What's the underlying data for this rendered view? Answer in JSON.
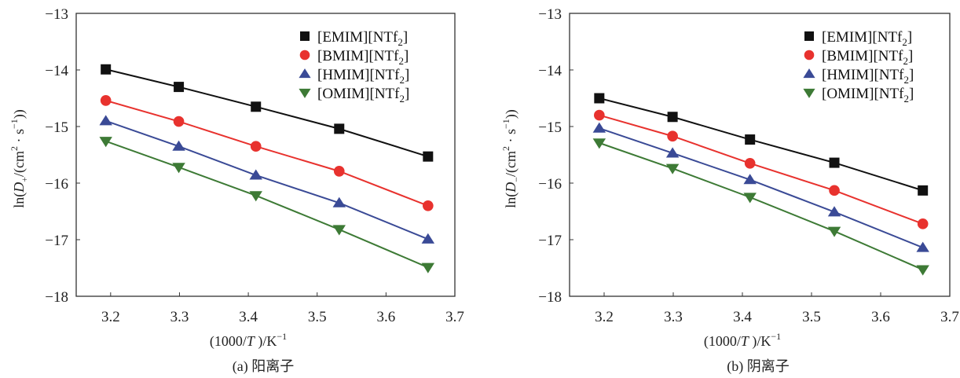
{
  "chart_data": [
    {
      "id": "a",
      "type": "line",
      "caption": "(a) 阳离子",
      "xlabel": "(1000/T )/K⁻¹",
      "ylabel": "ln(D₊/(cm²·s⁻¹))",
      "xlim": [
        3.15,
        3.7
      ],
      "ylim": [
        -18,
        -13
      ],
      "xticks": [
        3.2,
        3.3,
        3.4,
        3.5,
        3.6,
        3.7
      ],
      "xtick_labels": [
        "3.2",
        "3.3",
        "3.4",
        "3.5",
        "3.6",
        "3.7"
      ],
      "yticks": [
        -13,
        -14,
        -15,
        -16,
        -17,
        -18
      ],
      "ytick_labels": [
        "−13",
        "−14",
        "−15",
        "−16",
        "−17",
        "−18"
      ],
      "grid": false,
      "legend_position": "top-right",
      "x": [
        3.193,
        3.299,
        3.411,
        3.532,
        3.661
      ],
      "series": [
        {
          "name": "[EMIM][NTf2]",
          "base": "[EMIM][NTf",
          "sub": "2",
          "close": "]",
          "marker": "square",
          "color": "#111111",
          "values": [
            -13.99,
            -14.3,
            -14.65,
            -15.04,
            -15.53
          ]
        },
        {
          "name": "[BMIM][NTf2]",
          "base": "[BMIM][NTf",
          "sub": "2",
          "close": "]",
          "marker": "circle",
          "color": "#e8322e",
          "values": [
            -14.54,
            -14.91,
            -15.35,
            -15.79,
            -16.4
          ]
        },
        {
          "name": "[HMIM][NTf2]",
          "base": "[HMIM][NTf",
          "sub": "2",
          "close": "]",
          "marker": "triangle-up",
          "color": "#3a4a96",
          "values": [
            -14.9,
            -15.35,
            -15.86,
            -16.35,
            -16.99
          ]
        },
        {
          "name": "[OMIM][NTf2]",
          "base": "[OMIM][NTf",
          "sub": "2",
          "close": "]",
          "marker": "triangle-down",
          "color": "#3d7a35",
          "values": [
            -15.26,
            -15.72,
            -16.22,
            -16.82,
            -17.49
          ]
        }
      ]
    },
    {
      "id": "b",
      "type": "line",
      "caption": "(b) 阴离子",
      "xlabel": "(1000/T )/K⁻¹",
      "ylabel": "ln(D₋/(cm²·s⁻¹))",
      "xlim": [
        3.15,
        3.7
      ],
      "ylim": [
        -18,
        -13
      ],
      "xticks": [
        3.2,
        3.3,
        3.4,
        3.5,
        3.6,
        3.7
      ],
      "xtick_labels": [
        "3.2",
        "3.3",
        "3.4",
        "3.5",
        "3.6",
        "3.7"
      ],
      "yticks": [
        -13,
        -14,
        -15,
        -16,
        -17,
        -18
      ],
      "ytick_labels": [
        "−13",
        "−14",
        "−15",
        "−16",
        "−17",
        "−18"
      ],
      "grid": false,
      "legend_position": "top-right",
      "x": [
        3.193,
        3.299,
        3.411,
        3.533,
        3.661
      ],
      "series": [
        {
          "name": "[EMIM][NTf2]",
          "base": "[EMIM][NTf",
          "sub": "2",
          "close": "]",
          "marker": "square",
          "color": "#111111",
          "values": [
            -14.5,
            -14.83,
            -15.23,
            -15.64,
            -16.13
          ]
        },
        {
          "name": "[BMIM][NTf2]",
          "base": "[BMIM][NTf",
          "sub": "2",
          "close": "]",
          "marker": "circle",
          "color": "#e8322e",
          "values": [
            -14.8,
            -15.17,
            -15.65,
            -16.13,
            -16.72
          ]
        },
        {
          "name": "[HMIM][NTf2]",
          "base": "[HMIM][NTf",
          "sub": "2",
          "close": "]",
          "marker": "triangle-up",
          "color": "#3a4a96",
          "values": [
            -15.03,
            -15.47,
            -15.94,
            -16.51,
            -17.14
          ]
        },
        {
          "name": "[OMIM][NTf2]",
          "base": "[OMIM][NTf",
          "sub": "2",
          "close": "]",
          "marker": "triangle-down",
          "color": "#3d7a35",
          "values": [
            -15.29,
            -15.74,
            -16.25,
            -16.85,
            -17.53
          ]
        }
      ]
    }
  ],
  "ylabel_parts": {
    "a": {
      "prefix": "ln(",
      "italic": "D",
      "sub": "+",
      "middle": "/(cm",
      "sup2": "2",
      "dot": " · s",
      "supm1": "−1",
      "suffix": "))"
    },
    "b": {
      "prefix": "ln(",
      "italic": "D",
      "sub": "−",
      "middle": "/(cm",
      "sup2": "2",
      "dot": " · s",
      "supm1": "−1",
      "suffix": "))"
    }
  },
  "xlabel_parts": {
    "prefix": "(1000/",
    "italic": "T",
    "middle": " )/K",
    "sup": "−1"
  }
}
